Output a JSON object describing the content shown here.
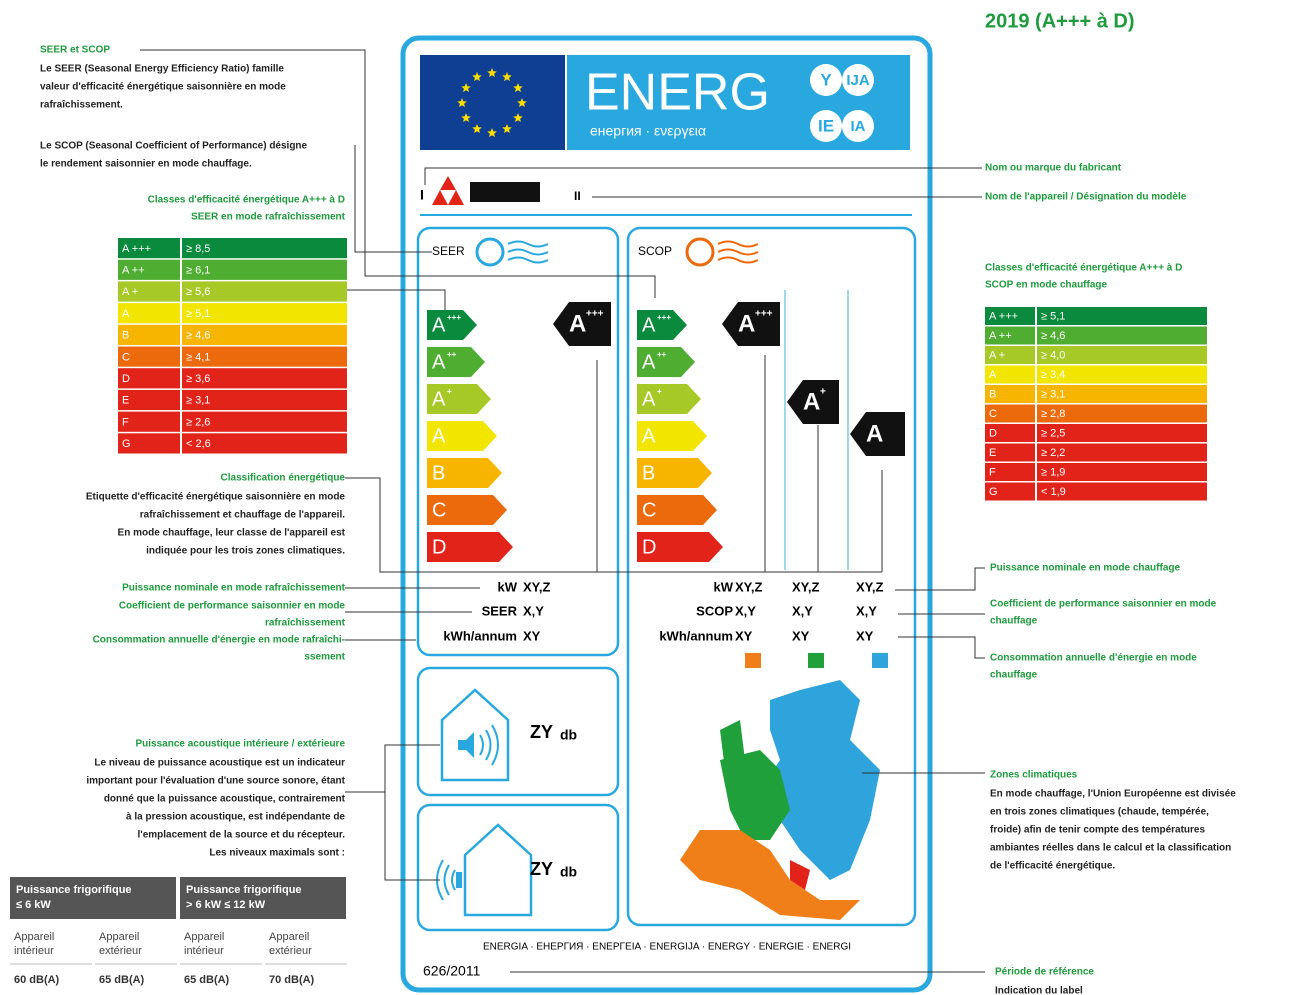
{
  "title": "2019 (A+++ à D)",
  "class_colors": [
    "#0a8a3c",
    "#4fae32",
    "#a6c928",
    "#f2e500",
    "#f7b500",
    "#ec6a0c",
    "#e2231a"
  ],
  "table_colors": [
    "#0a8a3c",
    "#4fae32",
    "#a6c928",
    "#f2e500",
    "#f7b500",
    "#ec6a0c",
    "#e2231a",
    "#e2231a",
    "#e2231a",
    "#e2231a"
  ],
  "header": {
    "energy": "ENERG",
    "subtitle": "енергия · ενεργεια",
    "suffixes": [
      "Y",
      "IJA",
      "IE",
      "IA"
    ]
  },
  "supplier": {
    "mark": "I",
    "model": "II"
  },
  "scale": [
    {
      "letter": "A",
      "sup": "+++"
    },
    {
      "letter": "A",
      "sup": "++"
    },
    {
      "letter": "A",
      "sup": "+"
    },
    {
      "letter": "A"
    },
    {
      "letter": "B"
    },
    {
      "letter": "C"
    },
    {
      "letter": "D"
    }
  ],
  "seer": {
    "label": "SEER",
    "rating": {
      "letter": "A",
      "sup": "+++"
    },
    "rows": [
      [
        "kW",
        "XY,Z"
      ],
      [
        "SEER",
        "X,Y"
      ],
      [
        "kWh/annum",
        "XY"
      ]
    ]
  },
  "scop": {
    "label": "SCOP",
    "ratings": [
      {
        "letter": "A",
        "sup": "+++"
      },
      {
        "letter": "A",
        "sup": "+"
      },
      {
        "letter": "A"
      }
    ],
    "rows": [
      [
        "kW",
        "XY,Z",
        "XY,Z",
        "XY,Z"
      ],
      [
        "SCOP",
        "X,Y",
        "X,Y",
        "X,Y"
      ],
      [
        "kWh/annum",
        "XY",
        "XY",
        "XY"
      ]
    ],
    "zone_colors": [
      "#f07f1a",
      "#1fa03a",
      "#2ea3dc"
    ]
  },
  "sound": [
    {
      "value": "ZY",
      "unit": "db"
    },
    {
      "value": "ZY",
      "unit": "db"
    }
  ],
  "footer": {
    "languages": "ENERGIA · ЕНЕРГИЯ · ΕΝΕΡΓΕΙΑ · ENERGIJA · ENERGY · ENERGIE · ENERGI",
    "regulation": "626/2011"
  },
  "seer_table": [
    [
      "A +++",
      "≥ 8,5"
    ],
    [
      "A ++",
      "≥ 6,1"
    ],
    [
      "A +",
      "≥ 5,6"
    ],
    [
      "A",
      "≥ 5,1"
    ],
    [
      "B",
      "≥ 4,6"
    ],
    [
      "C",
      "≥ 4,1"
    ],
    [
      "D",
      "≥ 3,6"
    ],
    [
      "E",
      "≥ 3,1"
    ],
    [
      "F",
      "≥ 2,6"
    ],
    [
      "G",
      "< 2,6"
    ]
  ],
  "scop_table": [
    [
      "A +++",
      "≥ 5,1"
    ],
    [
      "A ++",
      "≥ 4,6"
    ],
    [
      "A +",
      "≥ 4,0"
    ],
    [
      "A",
      "≥ 3,4"
    ],
    [
      "B",
      "≥ 3,1"
    ],
    [
      "C",
      "≥ 2,8"
    ],
    [
      "D",
      "≥ 2,5"
    ],
    [
      "E",
      "≥ 2,2"
    ],
    [
      "F",
      "≥ 1,9"
    ],
    [
      "G",
      "< 1,9"
    ]
  ],
  "annotations": [
    {
      "heading": [
        "SEER et SCOP"
      ],
      "body": [
        "Le SEER (Seasonal Energy Efficiency Ratio) famille",
        "valeur d'efficacité énergétique saisonnière en mode",
        "rafraîchissement."
      ]
    },
    {
      "body": [
        "Le SCOP (Seasonal Coefficient of Performance) désigne",
        "le rendement saisonnier en mode chauffage."
      ]
    },
    {
      "heading": [
        "Classes d'efficacité énergétique A+++ à D",
        "SEER en mode rafraîchissement"
      ]
    },
    {
      "heading": [
        "Classification énergétique"
      ],
      "body": [
        "Etiquette d'efficacité énergétique saisonnière en mode",
        "rafraîchissement et chauffage de l'appareil.",
        "En mode chauffage, leur classe de l'appareil est",
        "indiquée pour les trois zones climatiques."
      ]
    },
    {
      "heading": [
        "Puissance nominale en mode rafraîchissement"
      ]
    },
    {
      "heading": [
        "Coefficient de performance saisonnier en mode",
        "rafraîchissement"
      ]
    },
    {
      "heading": [
        "Consommation annuelle d'énergie en mode rafraîchi-",
        "ssement"
      ]
    },
    {
      "heading": [
        "Puissance acoustique intérieure / extérieure"
      ],
      "body": [
        "Le niveau de puissance acoustique est un indicateur",
        "important pour l'évaluation d'une source sonore, étant",
        "donné que la puissance acoustique, contrairement",
        "à la pression acoustique, est indépendante de",
        "l'emplacement de la source et du récepteur.",
        "Les niveaux maximals sont :"
      ]
    },
    {
      "heading": [
        "Nom ou marque du fabricant"
      ]
    },
    {
      "heading": [
        "Nom de l'appareil / Désignation du modèle"
      ]
    },
    {
      "heading": [
        "Classes d'efficacité énergétique A+++ à D",
        "SCOP en mode chauffage"
      ]
    },
    {
      "heading": [
        "Puissance nominale en mode chauffage"
      ]
    },
    {
      "heading": [
        "Coefficient de performance saisonnier en mode",
        "chauffage"
      ]
    },
    {
      "heading": [
        "Consommation annuelle d'énergie en mode",
        "chauffage"
      ]
    },
    {
      "heading": [
        "Zones climatiques"
      ],
      "body": [
        "En mode chauffage, l'Union Européenne est divisée",
        "en trois zones climatiques (chaude, tempérée,",
        "froide) afin de tenir compte des températures",
        "ambiantes réelles dans le calcul et la classification",
        "de l'efficacité énergétique."
      ]
    },
    {
      "heading": [
        "Période de référence"
      ],
      "body": [
        "Indication du label"
      ]
    }
  ],
  "sound_table": {
    "headers": [
      [
        "Puissance frigorifique",
        "≤ 6 kW"
      ],
      [
        "Puissance frigorifique",
        "> 6 kW ≤ 12 kW"
      ]
    ],
    "subheaders": [
      [
        "Appareil",
        "intérieur"
      ],
      [
        "Appareil",
        "extérieur"
      ],
      [
        "Appareil",
        "intérieur"
      ],
      [
        "Appareil",
        "extérieur"
      ]
    ],
    "values": [
      "60 dB(A)",
      "65 dB(A)",
      "65 dB(A)",
      "70 dB(A)"
    ]
  }
}
